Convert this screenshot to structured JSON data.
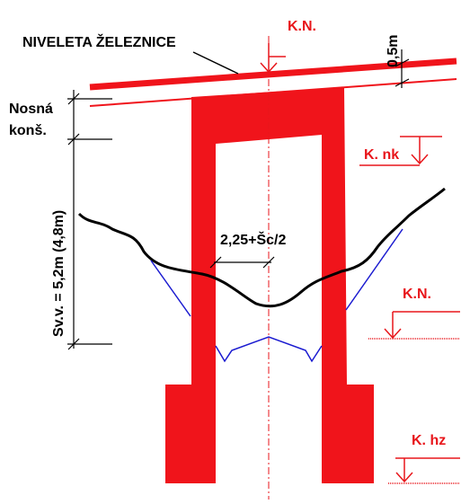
{
  "labels": {
    "track_level": "NIVELETA ŽELEZNICE",
    "top_level": "K.N.",
    "offset": "0,5m",
    "structure_1": "Nosná",
    "structure_2": "konš.",
    "clearance": "Sv.v. = 5,2m (4,8m)",
    "half_width": "2,25+Šc/2",
    "bearing_level": "K. nk",
    "ground_level": "K.N.",
    "foundation_level": "K. hz"
  }
}
